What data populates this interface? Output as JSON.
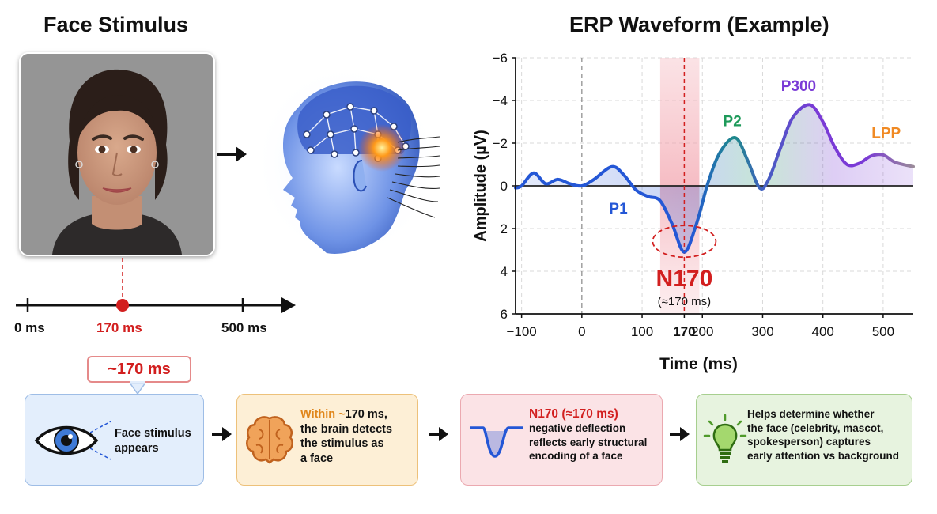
{
  "left_panel": {
    "title": "Face Stimulus",
    "timeline": {
      "ticks": [
        {
          "label": "0 ms"
        },
        {
          "label": "170 ms",
          "highlight": true
        },
        {
          "label": "500 ms"
        }
      ]
    },
    "badge": "~170 ms"
  },
  "steps": [
    {
      "icon": "eye-icon",
      "lines": [
        "Face stimulus",
        "appears"
      ]
    },
    {
      "icon": "brain-icon",
      "prefix_plain": "W",
      "prefix_highlight": "ithin ~",
      "lines": [
        "170 ms,",
        "the brain detects",
        "the stimulus as",
        "a face"
      ]
    },
    {
      "icon": "waveform-icon",
      "heading": "N170",
      "heading_suffix": "(≈170 ms)",
      "lines": [
        "negative deflection",
        "reflects early structural",
        "encoding of a face"
      ]
    },
    {
      "icon": "lightbulb-icon",
      "lines": [
        "Helps determine whether",
        "the face (celebrity, mascot,",
        "spokesperson) captures",
        "early attention vs background"
      ]
    }
  ],
  "colors": {
    "waveform_blue": "#2457d6",
    "p2_green": "#1e9a5a",
    "p300_purple": "#7a3ad6",
    "lpp_orange": "#f08a24",
    "n170_red": "#d21f1f"
  },
  "chart_data": {
    "type": "line",
    "title": "ERP Waveform (Example)",
    "xlabel": "Time (ms)",
    "ylabel": "Amplitude (µV)",
    "xlim": [
      -110,
      550
    ],
    "ylim": [
      -6,
      6
    ],
    "y_inverted": true,
    "x_ticks": [
      -100,
      0,
      100,
      170,
      200,
      300,
      400,
      500
    ],
    "x_tick_labels": [
      "−100",
      "0",
      "100",
      "170",
      "200",
      "300",
      "400",
      "500"
    ],
    "y_ticks": [
      -6,
      -4,
      -2,
      0,
      2,
      4,
      6
    ],
    "y_tick_labels": [
      "−6",
      "−4",
      "−2",
      "0",
      "2",
      "4",
      "6"
    ],
    "grid": true,
    "series": [
      {
        "x": [
          -110,
          -100,
          -80,
          -60,
          -40,
          -20,
          0,
          20,
          50,
          70,
          90,
          110,
          130,
          150,
          170,
          190,
          210,
          230,
          255,
          275,
          295,
          310,
          330,
          350,
          378,
          400,
          420,
          440,
          460,
          480,
          500,
          520,
          550
        ],
        "y": [
          0.1,
          0,
          -0.6,
          -0.1,
          -0.3,
          -0.1,
          0,
          -0.3,
          -0.9,
          -0.5,
          0.2,
          0.5,
          0.7,
          1.8,
          3.1,
          1.8,
          -0.2,
          -1.6,
          -2.25,
          -1.2,
          0.1,
          -0.3,
          -1.8,
          -3.2,
          -3.8,
          -3.0,
          -1.8,
          -1.0,
          -1.05,
          -1.4,
          -1.45,
          -1.1,
          -0.9
        ]
      }
    ],
    "components": [
      {
        "label": "P1",
        "x": 100
      },
      {
        "label": "N170",
        "x": 170,
        "sublabel": "(≈170 ms)"
      },
      {
        "label": "P2",
        "x": 255
      },
      {
        "label": "P300",
        "x": 378
      },
      {
        "label": "LPP",
        "x": 500
      }
    ],
    "highlight_window": [
      130,
      195
    ]
  }
}
